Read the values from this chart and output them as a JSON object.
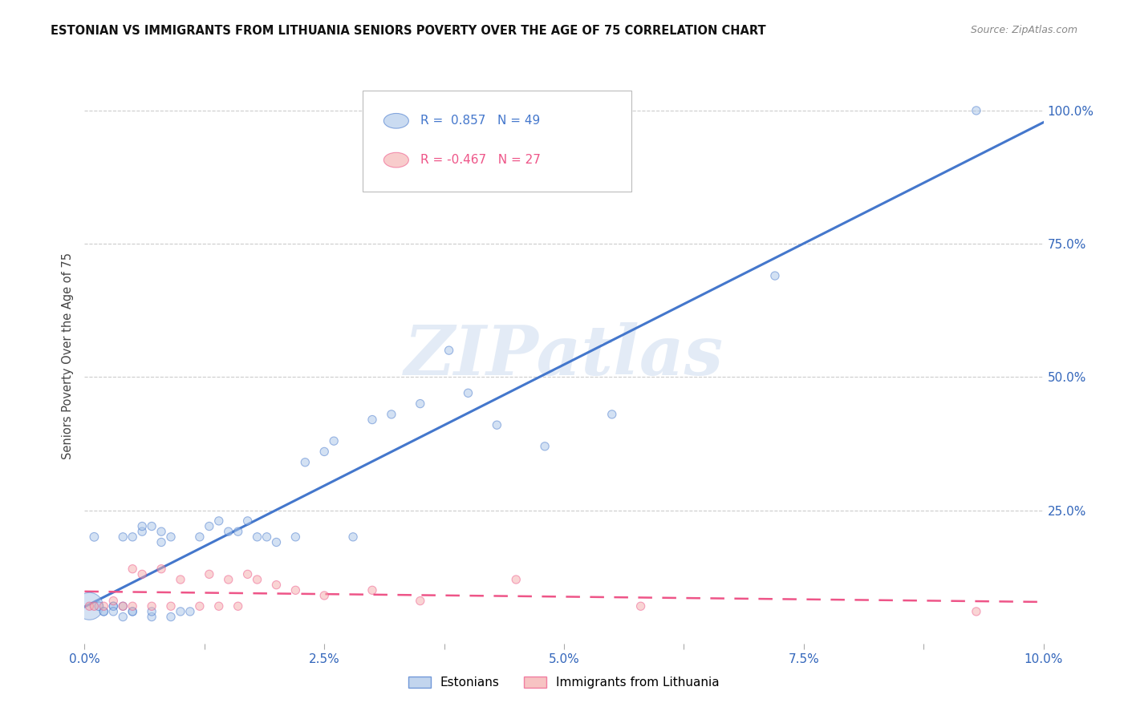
{
  "title": "ESTONIAN VS IMMIGRANTS FROM LITHUANIA SENIORS POVERTY OVER THE AGE OF 75 CORRELATION CHART",
  "source": "Source: ZipAtlas.com",
  "ylabel": "Seniors Poverty Over the Age of 75",
  "xlim": [
    0.0,
    0.1
  ],
  "ylim": [
    0.0,
    1.08
  ],
  "xtick_labels": [
    "0.0%",
    "",
    "2.5%",
    "",
    "5.0%",
    "",
    "7.5%",
    "",
    "10.0%"
  ],
  "xtick_vals": [
    0.0,
    0.0125,
    0.025,
    0.0375,
    0.05,
    0.0625,
    0.075,
    0.0875,
    0.1
  ],
  "ytick_labels": [
    "25.0%",
    "50.0%",
    "75.0%",
    "100.0%"
  ],
  "ytick_vals": [
    0.25,
    0.5,
    0.75,
    1.0
  ],
  "legend_r1": "R =  0.857",
  "legend_n1": "N = 49",
  "legend_r2": "R = -0.467",
  "legend_n2": "N = 27",
  "color_estonian": "#A8C4E8",
  "color_lithuania": "#F4AAAA",
  "color_line_estonian": "#4477CC",
  "color_line_lithuania": "#EE5588",
  "watermark": "ZIPatlas",
  "estonian_x": [
    0.0005,
    0.001,
    0.0015,
    0.002,
    0.002,
    0.003,
    0.003,
    0.003,
    0.004,
    0.004,
    0.004,
    0.005,
    0.005,
    0.005,
    0.006,
    0.006,
    0.007,
    0.007,
    0.007,
    0.008,
    0.008,
    0.009,
    0.009,
    0.01,
    0.011,
    0.012,
    0.013,
    0.014,
    0.015,
    0.016,
    0.017,
    0.018,
    0.019,
    0.02,
    0.022,
    0.023,
    0.025,
    0.026,
    0.028,
    0.03,
    0.032,
    0.035,
    0.038,
    0.04,
    0.043,
    0.048,
    0.055,
    0.072,
    0.093
  ],
  "estonian_y": [
    0.07,
    0.2,
    0.07,
    0.06,
    0.06,
    0.07,
    0.07,
    0.06,
    0.07,
    0.05,
    0.2,
    0.06,
    0.06,
    0.2,
    0.21,
    0.22,
    0.05,
    0.06,
    0.22,
    0.19,
    0.21,
    0.05,
    0.2,
    0.06,
    0.06,
    0.2,
    0.22,
    0.23,
    0.21,
    0.21,
    0.23,
    0.2,
    0.2,
    0.19,
    0.2,
    0.34,
    0.36,
    0.38,
    0.2,
    0.42,
    0.43,
    0.45,
    0.55,
    0.47,
    0.41,
    0.37,
    0.43,
    0.69,
    1.0
  ],
  "estonian_size": [
    600,
    60,
    60,
    55,
    55,
    55,
    55,
    55,
    55,
    55,
    55,
    55,
    55,
    55,
    55,
    55,
    55,
    55,
    55,
    55,
    55,
    55,
    55,
    55,
    55,
    55,
    55,
    55,
    55,
    55,
    55,
    55,
    55,
    55,
    55,
    55,
    55,
    55,
    55,
    55,
    55,
    55,
    55,
    55,
    55,
    55,
    55,
    55,
    55
  ],
  "lithuania_x": [
    0.0005,
    0.001,
    0.002,
    0.003,
    0.004,
    0.005,
    0.005,
    0.006,
    0.007,
    0.008,
    0.009,
    0.01,
    0.012,
    0.013,
    0.014,
    0.015,
    0.016,
    0.017,
    0.018,
    0.02,
    0.022,
    0.025,
    0.03,
    0.035,
    0.045,
    0.058,
    0.093
  ],
  "lithuania_y": [
    0.07,
    0.07,
    0.07,
    0.08,
    0.07,
    0.07,
    0.14,
    0.13,
    0.07,
    0.14,
    0.07,
    0.12,
    0.07,
    0.13,
    0.07,
    0.12,
    0.07,
    0.13,
    0.12,
    0.11,
    0.1,
    0.09,
    0.1,
    0.08,
    0.12,
    0.07,
    0.06
  ],
  "lithuania_size": [
    55,
    55,
    55,
    55,
    55,
    55,
    55,
    55,
    55,
    55,
    55,
    55,
    55,
    55,
    55,
    55,
    55,
    55,
    55,
    55,
    55,
    55,
    55,
    55,
    55,
    55,
    55
  ]
}
